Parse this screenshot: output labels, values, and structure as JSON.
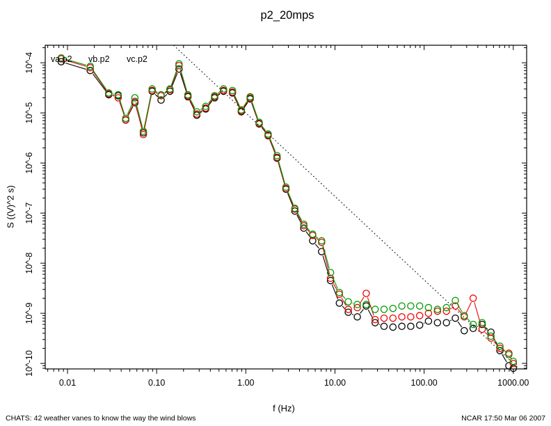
{
  "page": {
    "title": "p2_20mps",
    "footer_left": "CHATS: 42 weather vanes to know the way the wind blows",
    "footer_right": "NCAR 17:50 Mar 06 2007"
  },
  "chart_data": {
    "type": "line",
    "scale": "log-log",
    "title": "p2_20mps",
    "xlabel": "f (Hz)",
    "ylabel": "S ((V)^2 s)",
    "xlim": [
      0.0056,
      1400
    ],
    "ylim": [
      7.8e-11,
      0.00022
    ],
    "grid": false,
    "x_tick_values": [
      0.01,
      0.1,
      1,
      10,
      100,
      1000
    ],
    "x_tick_labels": [
      "0.01",
      "0.10",
      "1.00",
      "10.00",
      "100.00",
      "1000.00"
    ],
    "y_tick_values": [
      0.0001,
      1e-05,
      1e-06,
      1e-07,
      1e-08,
      1e-09,
      1e-10
    ],
    "y_tick_labels": [
      "10^-4",
      "10^-5",
      "10^-6",
      "10^-7",
      "10^-8",
      "10^-9",
      "10^-10"
    ],
    "legend": {
      "position": "top-left-inside",
      "entries": [
        {
          "label": "va.p2",
          "color": "#000000"
        },
        {
          "label": "vb.p2",
          "color": "#ee0000"
        },
        {
          "label": "vc.p2",
          "color": "#009900"
        }
      ]
    },
    "x": [
      0.0085,
      0.018,
      0.029,
      0.037,
      0.045,
      0.057,
      0.071,
      0.089,
      0.112,
      0.141,
      0.178,
      0.224,
      0.282,
      0.355,
      0.447,
      0.562,
      0.708,
      0.891,
      1.12,
      1.41,
      1.78,
      2.24,
      2.82,
      3.55,
      4.47,
      5.62,
      7.08,
      8.91,
      11.2,
      14.1,
      17.8,
      22.4,
      28.2,
      35.5,
      44.7,
      56.2,
      70.8,
      89.1,
      112,
      141,
      178,
      224,
      282,
      355,
      447,
      562,
      708,
      891,
      1000
    ],
    "series": [
      {
        "name": "va.p2",
        "color": "#000000",
        "marker": "circle",
        "values": [
          0.000105,
          7e-05,
          2.3e-05,
          2.2e-05,
          7.2e-06,
          1.6e-05,
          4e-06,
          2.7e-05,
          1.8e-05,
          2.7e-05,
          7.5e-05,
          2.1e-05,
          9e-06,
          1.2e-05,
          2e-05,
          2.7e-05,
          2.5e-05,
          1.05e-05,
          1.9e-05,
          6e-06,
          3.5e-06,
          1.25e-06,
          3e-07,
          1.1e-07,
          5e-08,
          2.8e-08,
          1.7e-08,
          4.5e-09,
          1.6e-09,
          1.05e-09,
          8.5e-10,
          1.4e-09,
          6.5e-10,
          5.5e-10,
          5.3e-10,
          5.5e-10,
          5.5e-10,
          5.8e-10,
          7e-10,
          6.5e-10,
          6.5e-10,
          8e-10,
          4.5e-10,
          5e-10,
          6e-10,
          4.2e-10,
          1.8e-10,
          9e-11,
          8e-11
        ]
      },
      {
        "name": "vb.p2",
        "color": "#ee0000",
        "marker": "circle",
        "values": [
          0.00012,
          8e-05,
          2.4e-05,
          2e-05,
          7.3e-06,
          1.7e-05,
          3.7e-06,
          2.8e-05,
          2.2e-05,
          2.9e-05,
          8.8e-05,
          2.2e-05,
          9.5e-06,
          1.25e-05,
          2.1e-05,
          2.8e-05,
          2.6e-05,
          1.1e-05,
          2e-05,
          6.2e-06,
          3.6e-06,
          1.3e-06,
          3.1e-07,
          1.2e-07,
          5.6e-08,
          3.6e-08,
          2.6e-08,
          5e-09,
          2.4e-09,
          1.2e-09,
          1.3e-09,
          2.5e-09,
          7.5e-10,
          8e-10,
          8e-10,
          8.5e-10,
          8.5e-10,
          9e-10,
          1e-09,
          1.1e-09,
          1.1e-09,
          1.4e-09,
          8.5e-10,
          2e-09,
          4.8e-10,
          3.2e-10,
          2e-10,
          1.6e-10,
          1e-10
        ]
      },
      {
        "name": "vc.p2",
        "color": "#009900",
        "marker": "circle",
        "values": [
          0.000125,
          8.5e-05,
          2.5e-05,
          2.3e-05,
          7.8e-06,
          2e-05,
          4.3e-06,
          3e-05,
          2.3e-05,
          3e-05,
          9.5e-05,
          2.3e-05,
          1.05e-05,
          1.35e-05,
          2.2e-05,
          3e-05,
          2.8e-05,
          1.15e-05,
          2.1e-05,
          6.5e-06,
          3.8e-06,
          1.4e-06,
          3.3e-07,
          1.25e-07,
          6e-08,
          3.8e-08,
          2.8e-08,
          6.5e-09,
          2.6e-09,
          1.7e-09,
          1.5e-09,
          1.5e-09,
          1.2e-09,
          1.2e-09,
          1.25e-09,
          1.4e-09,
          1.4e-09,
          1.4e-09,
          1.3e-09,
          1.2e-09,
          1.3e-09,
          1.8e-09,
          9e-10,
          6e-10,
          6.5e-10,
          3.5e-10,
          2.2e-10,
          1.5e-10,
          1.1e-10
        ]
      }
    ],
    "reference_line": {
      "style": "dotted",
      "color": "#000000",
      "slope_loglog": -1.6667,
      "value_at_1hz": 1e-05,
      "description": "-5/3 slope reference line"
    }
  }
}
